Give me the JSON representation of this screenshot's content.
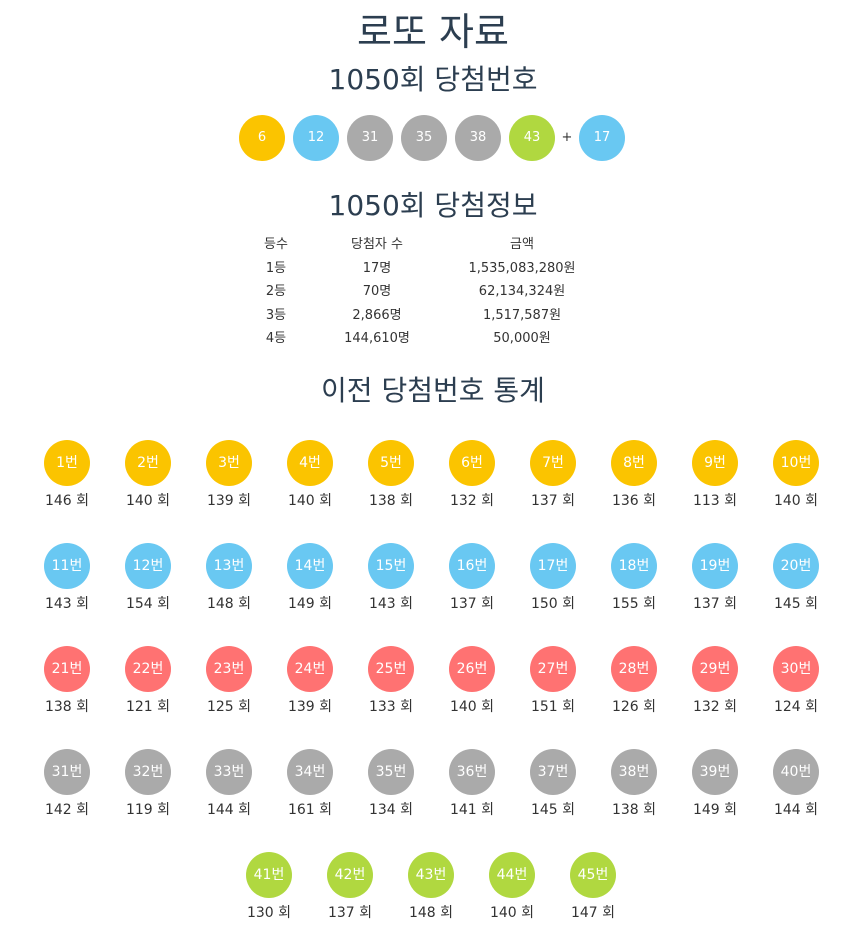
{
  "page_title": "로또 자료",
  "draw_title": "1050회 당첨번호",
  "winning_numbers": [
    {
      "number": "6",
      "color": "#fbc400"
    },
    {
      "number": "12",
      "color": "#69c8f2"
    },
    {
      "number": "31",
      "color": "#aaaaaa"
    },
    {
      "number": "35",
      "color": "#aaaaaa"
    },
    {
      "number": "38",
      "color": "#aaaaaa"
    },
    {
      "number": "43",
      "color": "#b0d840"
    }
  ],
  "plus_sign": "+",
  "bonus_number": {
    "number": "17",
    "color": "#69c8f2"
  },
  "info_title": "1050회 당첨정보",
  "prize_table": {
    "headers": [
      "등수",
      "당첨자 수",
      "금액"
    ],
    "rows": [
      [
        "1등",
        "17명",
        "1,535,083,280원"
      ],
      [
        "2등",
        "70명",
        "62,134,324원"
      ],
      [
        "3등",
        "2,866명",
        "1,517,587원"
      ],
      [
        "4등",
        "144,610명",
        "50,000원"
      ]
    ]
  },
  "stats_title": "이전 당첨번호 통계",
  "stats": [
    {
      "label": "1번",
      "count": "146 회",
      "color": "#fbc400"
    },
    {
      "label": "2번",
      "count": "140 회",
      "color": "#fbc400"
    },
    {
      "label": "3번",
      "count": "139 회",
      "color": "#fbc400"
    },
    {
      "label": "4번",
      "count": "140 회",
      "color": "#fbc400"
    },
    {
      "label": "5번",
      "count": "138 회",
      "color": "#fbc400"
    },
    {
      "label": "6번",
      "count": "132 회",
      "color": "#fbc400"
    },
    {
      "label": "7번",
      "count": "137 회",
      "color": "#fbc400"
    },
    {
      "label": "8번",
      "count": "136 회",
      "color": "#fbc400"
    },
    {
      "label": "9번",
      "count": "113 회",
      "color": "#fbc400"
    },
    {
      "label": "10번",
      "count": "140 회",
      "color": "#fbc400"
    },
    {
      "label": "11번",
      "count": "143 회",
      "color": "#69c8f2"
    },
    {
      "label": "12번",
      "count": "154 회",
      "color": "#69c8f2"
    },
    {
      "label": "13번",
      "count": "148 회",
      "color": "#69c8f2"
    },
    {
      "label": "14번",
      "count": "149 회",
      "color": "#69c8f2"
    },
    {
      "label": "15번",
      "count": "143 회",
      "color": "#69c8f2"
    },
    {
      "label": "16번",
      "count": "137 회",
      "color": "#69c8f2"
    },
    {
      "label": "17번",
      "count": "150 회",
      "color": "#69c8f2"
    },
    {
      "label": "18번",
      "count": "155 회",
      "color": "#69c8f2"
    },
    {
      "label": "19번",
      "count": "137 회",
      "color": "#69c8f2"
    },
    {
      "label": "20번",
      "count": "145 회",
      "color": "#69c8f2"
    },
    {
      "label": "21번",
      "count": "138 회",
      "color": "#ff7272"
    },
    {
      "label": "22번",
      "count": "121 회",
      "color": "#ff7272"
    },
    {
      "label": "23번",
      "count": "125 회",
      "color": "#ff7272"
    },
    {
      "label": "24번",
      "count": "139 회",
      "color": "#ff7272"
    },
    {
      "label": "25번",
      "count": "133 회",
      "color": "#ff7272"
    },
    {
      "label": "26번",
      "count": "140 회",
      "color": "#ff7272"
    },
    {
      "label": "27번",
      "count": "151 회",
      "color": "#ff7272"
    },
    {
      "label": "28번",
      "count": "126 회",
      "color": "#ff7272"
    },
    {
      "label": "29번",
      "count": "132 회",
      "color": "#ff7272"
    },
    {
      "label": "30번",
      "count": "124 회",
      "color": "#ff7272"
    },
    {
      "label": "31번",
      "count": "142 회",
      "color": "#aaaaaa"
    },
    {
      "label": "32번",
      "count": "119 회",
      "color": "#aaaaaa"
    },
    {
      "label": "33번",
      "count": "144 회",
      "color": "#aaaaaa"
    },
    {
      "label": "34번",
      "count": "161 회",
      "color": "#aaaaaa"
    },
    {
      "label": "35번",
      "count": "134 회",
      "color": "#aaaaaa"
    },
    {
      "label": "36번",
      "count": "141 회",
      "color": "#aaaaaa"
    },
    {
      "label": "37번",
      "count": "145 회",
      "color": "#aaaaaa"
    },
    {
      "label": "38번",
      "count": "138 회",
      "color": "#aaaaaa"
    },
    {
      "label": "39번",
      "count": "149 회",
      "color": "#aaaaaa"
    },
    {
      "label": "40번",
      "count": "144 회",
      "color": "#aaaaaa"
    },
    {
      "label": "41번",
      "count": "130 회",
      "color": "#b0d840"
    },
    {
      "label": "42번",
      "count": "137 회",
      "color": "#b0d840"
    },
    {
      "label": "43번",
      "count": "148 회",
      "color": "#b0d840"
    },
    {
      "label": "44번",
      "count": "140 회",
      "color": "#b0d840"
    },
    {
      "label": "45번",
      "count": "147 회",
      "color": "#b0d840"
    }
  ]
}
